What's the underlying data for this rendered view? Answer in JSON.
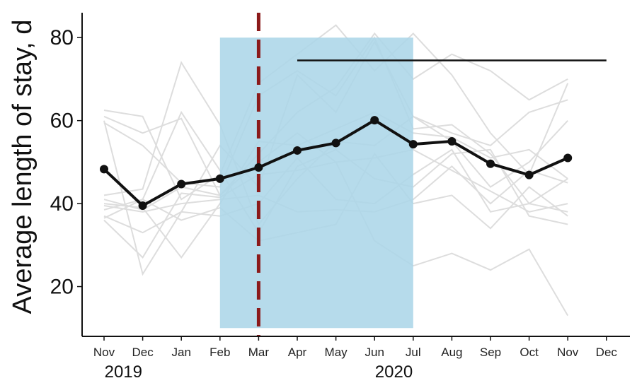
{
  "chart_data": {
    "type": "line",
    "title": "",
    "xlabel": "",
    "ylabel": "Average length of stay, d",
    "ylim": [
      8,
      86
    ],
    "yticks": [
      20,
      40,
      60,
      80
    ],
    "categories": [
      "Nov",
      "Dec",
      "Jan",
      "Feb",
      "Mar",
      "Apr",
      "May",
      "Jun",
      "Jul",
      "Aug",
      "Sep",
      "Oct",
      "Nov",
      "Dec"
    ],
    "year_labels": [
      {
        "label": "2019",
        "category_index": 0.5
      },
      {
        "label": "2020",
        "category_index": 7.5
      }
    ],
    "grid": false,
    "legend": "none",
    "shaded_region": {
      "x_start_index": 3,
      "x_end_index": 8,
      "y_start": 10,
      "y_end": 80,
      "color": "#acd6e8"
    },
    "vertical_marker": {
      "x_index": 4,
      "color": "#8b1a1a",
      "style": "dashed"
    },
    "horizontal_segment": {
      "x_start_index": 5,
      "x_end_index": 13,
      "y": 74.5,
      "color": "#111111"
    },
    "main_series": {
      "color": "#111111",
      "values": [
        48.3,
        39.5,
        44.7,
        46.0,
        48.7,
        52.8,
        54.6,
        60.1,
        54.3,
        55.0,
        49.6,
        46.9,
        51.0
      ]
    },
    "background_series": [
      {
        "color": "#dddddd",
        "values": [
          62.5,
          61.0,
          41.0,
          47.0,
          69.0,
          76.0,
          83.0,
          72.0,
          81.0,
          71.0,
          57.0,
          47.0,
          69.0
        ]
      },
      {
        "color": "#dddddd",
        "values": [
          61.0,
          57.0,
          60.5,
          42.0,
          52.0,
          62.0,
          68.0,
          81.0,
          70.0,
          76.0,
          72.0,
          65.0,
          70.0
        ]
      },
      {
        "color": "#dddddd",
        "values": [
          59.5,
          54.0,
          45.0,
          44.0,
          66.0,
          72.0,
          66.0,
          80.0,
          58.0,
          59.0,
          52.0,
          40.0,
          46.0
        ]
      },
      {
        "color": "#dddddd",
        "values": [
          60.0,
          23.0,
          38.0,
          54.0,
          44.0,
          71.0,
          62.0,
          79.0,
          61.0,
          57.0,
          54.0,
          62.0,
          65.0
        ]
      },
      {
        "color": "#dddddd",
        "values": [
          42.0,
          43.5,
          74.0,
          59.0,
          35.0,
          46.0,
          55.0,
          54.0,
          61.0,
          55.0,
          44.0,
          50.0,
          60.0
        ]
      },
      {
        "color": "#dddddd",
        "values": [
          40.0,
          39.0,
          27.0,
          40.0,
          55.0,
          54.0,
          58.0,
          62.0,
          57.0,
          56.0,
          51.0,
          53.0,
          46.0
        ]
      },
      {
        "color": "#dddddd",
        "values": [
          38.5,
          41.0,
          62.0,
          48.0,
          33.0,
          49.0,
          53.0,
          46.0,
          44.0,
          52.0,
          53.0,
          37.0,
          35.0
        ]
      },
      {
        "color": "#dddddd",
        "values": [
          37.0,
          33.0,
          38.0,
          37.0,
          40.0,
          51.0,
          41.0,
          40.0,
          47.0,
          53.0,
          38.0,
          40.0,
          38.0
        ]
      },
      {
        "color": "#dddddd",
        "values": [
          36.0,
          27.0,
          42.5,
          41.5,
          47.0,
          48.0,
          50.0,
          51.0,
          53.0,
          48.0,
          43.0,
          38.0,
          40.0
        ]
      },
      {
        "color": "#dddddd",
        "values": [
          39.5,
          38.0,
          40.0,
          41.0,
          42.0,
          38.0,
          38.5,
          38.0,
          41.0,
          49.0,
          40.0,
          48.0,
          45.0
        ]
      },
      {
        "color": "#dddddd",
        "values": [
          41.0,
          38.5,
          44.0,
          42.0,
          50.0,
          57.0,
          50.0,
          31.0,
          25.0,
          28.0,
          24.0,
          29.0,
          13.0
        ]
      },
      {
        "color": "#dddddd",
        "values": [
          36.5,
          41.0,
          36.0,
          39.0,
          31.0,
          33.0,
          35.0,
          52.0,
          40.0,
          42.0,
          34.0,
          44.0,
          37.0
        ]
      }
    ]
  }
}
